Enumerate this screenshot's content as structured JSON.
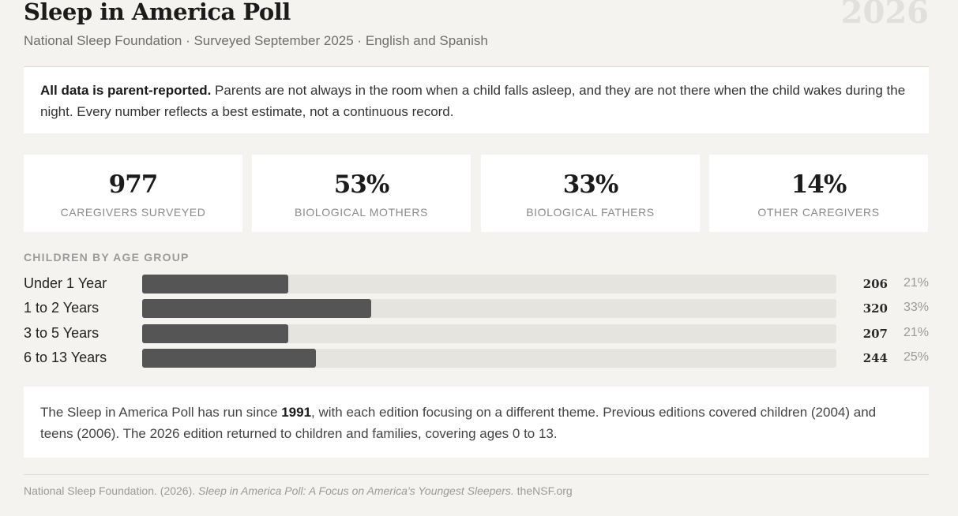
{
  "header": {
    "title": "Sleep in America Poll",
    "year": "2026",
    "subtitle": "National Sleep Foundation · Surveyed September 2025 · English and Spanish"
  },
  "notice": {
    "bold": "All data is parent-reported.",
    "text": " Parents are not always in the room when a child falls asleep, and they are not there when the child wakes during the night. Every number reflects a best estimate, not a continuous record."
  },
  "stats": [
    {
      "value": "977",
      "label": "Caregivers Surveyed"
    },
    {
      "value": "53%",
      "label": "Biological Mothers"
    },
    {
      "value": "33%",
      "label": "Biological Fathers"
    },
    {
      "value": "14%",
      "label": "Other Caregivers"
    }
  ],
  "age_section": {
    "label": "CHILDREN BY AGE GROUP"
  },
  "chart_data": {
    "type": "bar",
    "title": "CHILDREN BY AGE GROUP",
    "categories": [
      "Under 1 Year",
      "1 to 2 Years",
      "3 to 5 Years",
      "6 to 13 Years"
    ],
    "values": [
      206,
      320,
      207,
      244
    ],
    "percent_labels": [
      "21%",
      "33%",
      "21%",
      "25%"
    ],
    "percents": [
      21,
      33,
      21,
      25
    ],
    "xlim": [
      0,
      100
    ]
  },
  "history": {
    "pre": "The Sleep in America Poll has run since ",
    "bold": "1991",
    "post": ", with each edition focusing on a different theme. Previous editions covered children (2004) and teens (2006). The 2026 edition returned to children and families, covering ages 0 to 13."
  },
  "citation": {
    "author": "National Sleep Foundation. (2026). ",
    "title": "Sleep in America Poll: A Focus on America’s Youngest Sleepers.",
    "site": " theNSF.org"
  }
}
